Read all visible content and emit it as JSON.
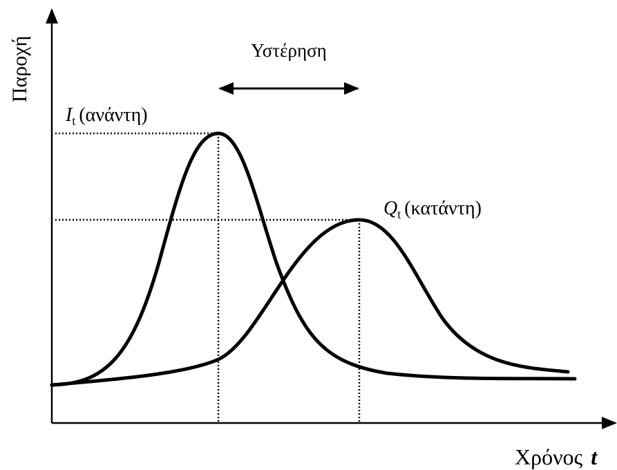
{
  "axes": {
    "y_label": "Παροχή",
    "x_label": "Χρόνος",
    "x_symbol": "t"
  },
  "annotation": "Υστέρηση",
  "curves": [
    {
      "symbol": "I",
      "subscript": "t",
      "label": "(ανάντη)"
    },
    {
      "symbol": "Q",
      "subscript": "t",
      "label": "(κατάντη)"
    }
  ]
}
